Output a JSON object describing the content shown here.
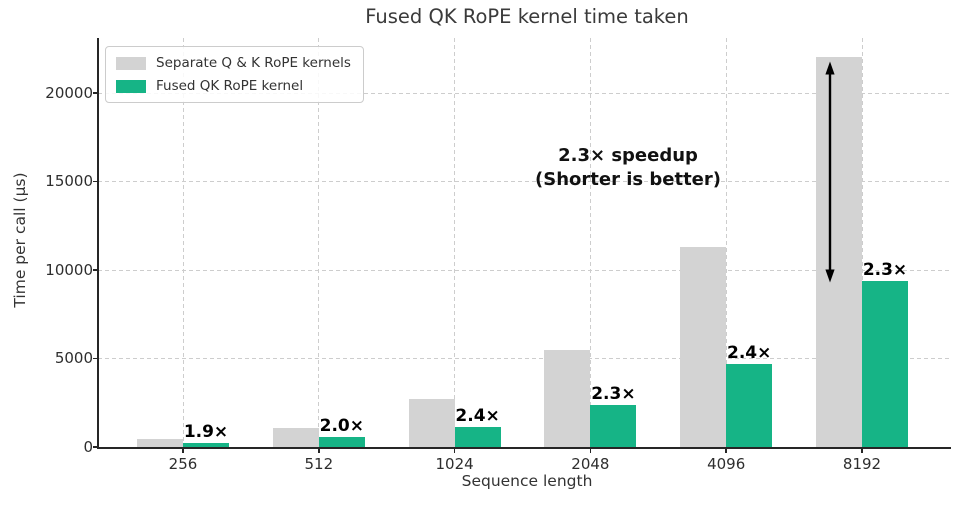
{
  "chart_data": {
    "type": "bar",
    "title": "Fused QK RoPE kernel time taken",
    "xlabel": "Sequence length",
    "ylabel": "Time per call (µs)",
    "categories": [
      "256",
      "512",
      "1024",
      "2048",
      "4096",
      "8192"
    ],
    "series": [
      {
        "name": "Separate Q & K RoPE kernels",
        "color": "#d3d3d3",
        "values": [
          430,
          1080,
          2700,
          5480,
          11300,
          22000
        ]
      },
      {
        "name": "Fused QK RoPE kernel",
        "color": "#16b486",
        "values": [
          225,
          550,
          1130,
          2400,
          4700,
          9350
        ]
      }
    ],
    "speedup_labels": [
      "1.9×",
      "2.0×",
      "2.4×",
      "2.3×",
      "2.4×",
      "2.3×"
    ],
    "yticks": [
      0,
      5000,
      10000,
      15000,
      20000
    ],
    "ylim": [
      0,
      23100
    ],
    "grid": true,
    "legend_position": "upper left",
    "annotation": {
      "line1": "2.3× speedup",
      "line2": "(Shorter is better)",
      "arrow_from_value": 22000,
      "arrow_to_value": 9350,
      "arrow_color": "#000000"
    }
  }
}
